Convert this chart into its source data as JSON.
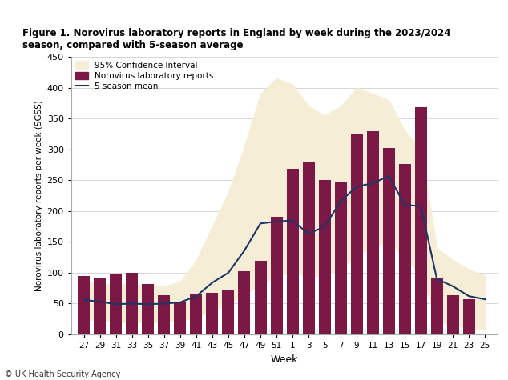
{
  "title": "Figure 1. Norovirus laboratory reports in England by week during the 2023/2024\nseason, compared with 5-season average",
  "xlabel": "Week",
  "ylabel": "Norovirus laboratory reports per week (SGSS)",
  "footnote": "© UK Health Security Agency",
  "week_labels": [
    "27",
    "29",
    "31",
    "33",
    "35",
    "37",
    "39",
    "41",
    "43",
    "45",
    "47",
    "49",
    "51",
    "1",
    "3",
    "5",
    "7",
    "9",
    "11",
    "13",
    "15",
    "17",
    "19",
    "21",
    "23",
    "25"
  ],
  "bar_values": [
    95,
    92,
    99,
    100,
    82,
    64,
    52,
    65,
    67,
    71,
    102,
    119,
    191,
    268,
    280,
    250,
    246,
    325,
    330,
    303,
    277,
    369,
    91,
    63,
    57,
    0
  ],
  "bar_color": "#7B1845",
  "mean_values": [
    56,
    53,
    49,
    50,
    49,
    50,
    52,
    62,
    84,
    100,
    136,
    180,
    183,
    185,
    163,
    175,
    216,
    240,
    245,
    257,
    210,
    208,
    90,
    78,
    62,
    57
  ],
  "ci_lower": [
    25,
    22,
    20,
    20,
    20,
    20,
    22,
    28,
    38,
    50,
    65,
    80,
    95,
    100,
    95,
    95,
    105,
    130,
    140,
    155,
    120,
    100,
    22,
    15,
    10,
    8
  ],
  "ci_upper": [
    88,
    82,
    80,
    82,
    78,
    78,
    85,
    120,
    175,
    230,
    305,
    390,
    415,
    405,
    370,
    355,
    370,
    400,
    390,
    380,
    330,
    300,
    140,
    120,
    105,
    95
  ],
  "mean_color": "#1F3566",
  "ci_color": "#F5EDD6",
  "ylim": [
    0,
    450
  ],
  "yticks": [
    0,
    50,
    100,
    150,
    200,
    250,
    300,
    350,
    400,
    450
  ],
  "background_color": "#ffffff",
  "grid_color": "#d0d0d0"
}
